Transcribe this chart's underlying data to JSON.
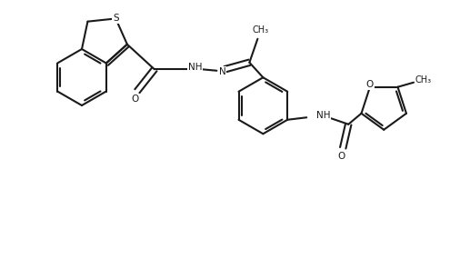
{
  "bg_color": "#ffffff",
  "line_color": "#1a1a1a",
  "text_color": "#1a1a1a",
  "bond_lw": 1.5,
  "figsize": [
    5.17,
    2.85
  ],
  "dpi": 100,
  "xlim": [
    0,
    10.34
  ],
  "ylim": [
    0,
    5.7
  ]
}
